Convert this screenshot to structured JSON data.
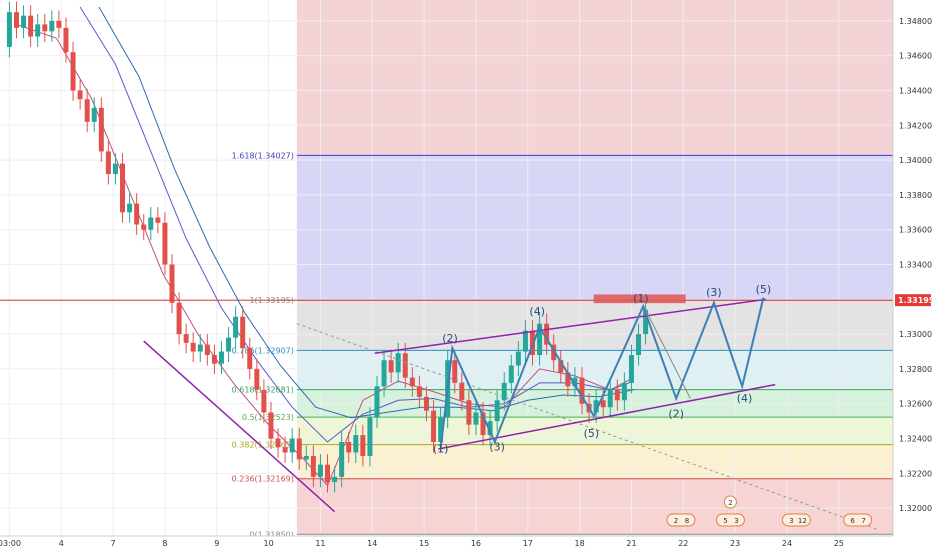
{
  "chart_data": {
    "type": "candlestick",
    "y_axis": {
      "ylim": [
        1.3184,
        1.3492
      ],
      "ticks": [
        "1.34800",
        "1.34600",
        "1.34400",
        "1.34200",
        "1.34000",
        "1.33800",
        "1.33600",
        "1.33400",
        "1.33200",
        "1.33000",
        "1.32800",
        "1.32600",
        "1.32400",
        "1.32200",
        "1.32000"
      ],
      "tick_values": [
        1.348,
        1.346,
        1.344,
        1.342,
        1.34,
        1.338,
        1.336,
        1.334,
        1.332,
        1.33,
        1.328,
        1.326,
        1.324,
        1.322,
        1.32
      ]
    },
    "x_axis": {
      "labels": [
        "03:00",
        "4",
        "7",
        "8",
        "9",
        "10",
        "11",
        "14",
        "15",
        "16",
        "17",
        "18",
        "21",
        "22",
        "23",
        "24",
        "25"
      ],
      "label_positions": [
        0.0,
        2.2,
        4.4,
        6.6,
        8.8,
        11.0,
        13.2,
        15.4,
        17.6,
        19.8,
        22.0,
        24.2,
        26.4,
        28.6,
        30.8,
        33.0,
        35.2
      ],
      "xlim": [
        -0.4,
        37.5
      ]
    },
    "current_price": {
      "label": "1.33195",
      "value": 1.33195,
      "color": "#e53935"
    },
    "fibonacci": {
      "levels": [
        {
          "label": "1.618(1.34027)",
          "value": 1.34027,
          "color": "#3f3fbf"
        },
        {
          "label": "1(1.33195)",
          "value": 1.33195,
          "color": "#8a8a8a"
        },
        {
          "label": "0.786(1.32907)",
          "value": 1.32907,
          "color": "#2a8fc9"
        },
        {
          "label": "0.618(1.32681)",
          "value": 1.32681,
          "color": "#3aa55a"
        },
        {
          "label": "0.5(1.32523)",
          "value": 1.32523,
          "color": "#4caf50"
        },
        {
          "label": "0.382(1.32365)",
          "value": 1.32365,
          "color": "#a8a820"
        },
        {
          "label": "0.236(1.32169)",
          "value": 1.32169,
          "color": "#d24b4b"
        },
        {
          "label": "0(1.31850)",
          "value": 1.3185,
          "color": "#888888"
        }
      ],
      "zones": [
        {
          "from": 1.3185,
          "to": 1.32169,
          "color": "#f6d4d4"
        },
        {
          "from": 1.32169,
          "to": 1.32365,
          "color": "#fbf1d2"
        },
        {
          "from": 1.32365,
          "to": 1.32523,
          "color": "#eef6d8"
        },
        {
          "from": 1.32523,
          "to": 1.32681,
          "color": "#d7f2dc"
        },
        {
          "from": 1.32681,
          "to": 1.32907,
          "color": "#dff0f3"
        },
        {
          "from": 1.32907,
          "to": 1.33195,
          "color": "#e3e3e3"
        },
        {
          "from": 1.33195,
          "to": 1.34027,
          "color": "#d8d6f6"
        },
        {
          "from": 1.34027,
          "to": 1.3492,
          "color": "#f3d3d5"
        }
      ],
      "x_start": 12.2
    },
    "wave_labels": [
      {
        "text": "(1)",
        "x": 18.3,
        "y": 1.3232
      },
      {
        "text": "(2)",
        "x": 18.7,
        "y": 1.32955
      },
      {
        "text": "(3)",
        "x": 20.7,
        "y": 1.3233
      },
      {
        "text": "(4)",
        "x": 22.4,
        "y": 1.3311
      },
      {
        "text": "(5)",
        "x": 24.7,
        "y": 1.3241
      },
      {
        "text": "(1)",
        "x": 26.8,
        "y": 1.33185
      },
      {
        "text": "(2)",
        "x": 28.3,
        "y": 1.3252
      },
      {
        "text": "(3)",
        "x": 29.9,
        "y": 1.3322
      },
      {
        "text": "(4)",
        "x": 31.2,
        "y": 1.3261
      },
      {
        "text": "(5)",
        "x": 32.0,
        "y": 1.33235
      }
    ],
    "wave_path": [
      [
        18.3,
        1.3234
      ],
      [
        18.8,
        1.3292
      ],
      [
        20.6,
        1.3238
      ],
      [
        22.5,
        1.3304
      ],
      [
        24.8,
        1.3253
      ],
      [
        26.9,
        1.3316
      ],
      [
        28.3,
        1.3263
      ],
      [
        29.9,
        1.3318
      ],
      [
        31.1,
        1.327
      ],
      [
        32.0,
        1.3321
      ]
    ],
    "arrow_segment": [
      [
        27.0,
        1.3314
      ],
      [
        28.9,
        1.3263
      ]
    ],
    "channel_upper": [
      [
        15.5,
        1.3289
      ],
      [
        32.1,
        1.332
      ]
    ],
    "channel_lower": [
      [
        18.2,
        1.3234
      ],
      [
        32.5,
        1.3271
      ]
    ],
    "downtrend_line": [
      [
        5.7,
        1.3296
      ],
      [
        13.8,
        1.3198
      ]
    ],
    "dotted_trend": [
      [
        12.2,
        1.3306
      ],
      [
        36.8,
        1.3188
      ]
    ],
    "target_box": {
      "x1": 24.8,
      "x2": 28.7,
      "y1": 1.33178,
      "y2": 1.33228,
      "color": "#e05555"
    },
    "ema_fast": [
      [
        0.3,
        1.3478
      ],
      [
        2.0,
        1.347
      ],
      [
        3.5,
        1.3435
      ],
      [
        5.0,
        1.3385
      ],
      [
        6.5,
        1.3335
      ],
      [
        8.0,
        1.33
      ],
      [
        9.5,
        1.3272
      ],
      [
        11.0,
        1.3248
      ],
      [
        12.5,
        1.3228
      ],
      [
        13.5,
        1.3213
      ],
      [
        15,
        1.3262
      ],
      [
        16.5,
        1.3273
      ],
      [
        18,
        1.3267
      ],
      [
        19.5,
        1.326
      ],
      [
        21,
        1.3258
      ],
      [
        22.5,
        1.328
      ],
      [
        24,
        1.3276
      ],
      [
        25.5,
        1.3268
      ],
      [
        26.5,
        1.3275
      ]
    ],
    "ema_mid": [
      [
        3.0,
        1.3488
      ],
      [
        4.5,
        1.3455
      ],
      [
        6.0,
        1.3405
      ],
      [
        7.5,
        1.3355
      ],
      [
        9.0,
        1.3315
      ],
      [
        10.5,
        1.3285
      ],
      [
        12.0,
        1.3258
      ],
      [
        13.5,
        1.3238
      ],
      [
        15,
        1.3254
      ],
      [
        16.5,
        1.3262
      ],
      [
        18,
        1.3263
      ],
      [
        19.5,
        1.3258
      ],
      [
        21,
        1.326
      ],
      [
        22.5,
        1.3272
      ],
      [
        24,
        1.3272
      ],
      [
        25.5,
        1.3268
      ],
      [
        26.5,
        1.3273
      ]
    ],
    "ema_slow": [
      [
        3.8,
        1.3488
      ],
      [
        5.5,
        1.3448
      ],
      [
        7.0,
        1.3395
      ],
      [
        8.5,
        1.335
      ],
      [
        10.0,
        1.3312
      ],
      [
        11.5,
        1.3282
      ],
      [
        13.0,
        1.3258
      ],
      [
        14.5,
        1.3252
      ],
      [
        16,
        1.3255
      ],
      [
        17.5,
        1.3258
      ],
      [
        19,
        1.3258
      ],
      [
        20.5,
        1.3256
      ],
      [
        22,
        1.3262
      ],
      [
        23.5,
        1.3265
      ],
      [
        25,
        1.3264
      ],
      [
        26.5,
        1.3268
      ]
    ],
    "candles": [
      [
        0.0,
        1.3465,
        1.3485
      ],
      [
        0.3,
        1.3485,
        1.3476
      ],
      [
        0.6,
        1.3476,
        1.3483
      ],
      [
        0.9,
        1.3483,
        1.3471
      ],
      [
        1.2,
        1.3471,
        1.3478
      ],
      [
        1.5,
        1.3478,
        1.3474
      ],
      [
        1.8,
        1.3474,
        1.348
      ],
      [
        2.1,
        1.348,
        1.3476
      ],
      [
        2.4,
        1.3476,
        1.3462
      ],
      [
        2.7,
        1.3462,
        1.344
      ],
      [
        3.0,
        1.344,
        1.3435
      ],
      [
        3.3,
        1.3435,
        1.3422
      ],
      [
        3.6,
        1.3422,
        1.343
      ],
      [
        3.9,
        1.343,
        1.3405
      ],
      [
        4.2,
        1.3405,
        1.3392
      ],
      [
        4.5,
        1.3392,
        1.3398
      ],
      [
        4.8,
        1.3398,
        1.337
      ],
      [
        5.1,
        1.337,
        1.3375
      ],
      [
        5.4,
        1.3375,
        1.3363
      ],
      [
        5.7,
        1.3363,
        1.336
      ],
      [
        6.0,
        1.336,
        1.3367
      ],
      [
        6.3,
        1.3367,
        1.3364
      ],
      [
        6.6,
        1.3364,
        1.334
      ],
      [
        6.9,
        1.334,
        1.3318
      ],
      [
        7.2,
        1.3318,
        1.33
      ],
      [
        7.5,
        1.33,
        1.3295
      ],
      [
        7.8,
        1.3295,
        1.329
      ],
      [
        8.1,
        1.329,
        1.3294
      ],
      [
        8.4,
        1.3294,
        1.3288
      ],
      [
        8.7,
        1.3288,
        1.3283
      ],
      [
        9.0,
        1.3283,
        1.329
      ],
      [
        9.3,
        1.329,
        1.3298
      ],
      [
        9.6,
        1.3298,
        1.331
      ],
      [
        9.9,
        1.331,
        1.3292
      ],
      [
        10.2,
        1.3292,
        1.328
      ],
      [
        10.5,
        1.328,
        1.3268
      ],
      [
        10.8,
        1.3268,
        1.3255
      ],
      [
        11.1,
        1.3255,
        1.324
      ],
      [
        11.4,
        1.324,
        1.3235
      ],
      [
        11.7,
        1.3235,
        1.3232
      ],
      [
        12.0,
        1.3232,
        1.324
      ],
      [
        12.3,
        1.324,
        1.3228
      ],
      [
        12.6,
        1.3228,
        1.323
      ],
      [
        12.9,
        1.323,
        1.3218
      ],
      [
        13.2,
        1.3218,
        1.3225
      ],
      [
        13.5,
        1.3225,
        1.3215
      ],
      [
        13.8,
        1.3215,
        1.3218
      ],
      [
        14.1,
        1.3218,
        1.3238
      ],
      [
        14.4,
        1.3238,
        1.3232
      ],
      [
        14.7,
        1.3232,
        1.3242
      ],
      [
        15.0,
        1.3242,
        1.323
      ],
      [
        15.3,
        1.323,
        1.3252
      ],
      [
        15.6,
        1.3252,
        1.327
      ],
      [
        15.9,
        1.327,
        1.3285
      ],
      [
        16.2,
        1.3285,
        1.3278
      ],
      [
        16.5,
        1.3278,
        1.3289
      ],
      [
        16.8,
        1.3289,
        1.3275
      ],
      [
        17.1,
        1.3275,
        1.327
      ],
      [
        17.4,
        1.327,
        1.3264
      ],
      [
        17.7,
        1.3264,
        1.3256
      ],
      [
        18.0,
        1.3256,
        1.3238
      ],
      [
        18.3,
        1.3238,
        1.3252
      ],
      [
        18.6,
        1.3252,
        1.3285
      ],
      [
        18.9,
        1.3285,
        1.3272
      ],
      [
        19.2,
        1.3272,
        1.3262
      ],
      [
        19.5,
        1.3262,
        1.3248
      ],
      [
        19.8,
        1.3248,
        1.3255
      ],
      [
        20.1,
        1.3255,
        1.3242
      ],
      [
        20.4,
        1.3242,
        1.325
      ],
      [
        20.7,
        1.325,
        1.3262
      ],
      [
        21.0,
        1.3262,
        1.3272
      ],
      [
        21.3,
        1.3272,
        1.3282
      ],
      [
        21.6,
        1.3282,
        1.329
      ],
      [
        21.9,
        1.329,
        1.3302
      ],
      [
        22.2,
        1.3302,
        1.3288
      ],
      [
        22.5,
        1.3288,
        1.3306
      ],
      [
        22.8,
        1.3306,
        1.3294
      ],
      [
        23.1,
        1.3294,
        1.3285
      ],
      [
        23.4,
        1.3285,
        1.3278
      ],
      [
        23.7,
        1.3278,
        1.327
      ],
      [
        24.0,
        1.327,
        1.3275
      ],
      [
        24.3,
        1.3275,
        1.326
      ],
      [
        24.6,
        1.326,
        1.3255
      ],
      [
        24.9,
        1.3255,
        1.3262
      ],
      [
        25.2,
        1.3262,
        1.3258
      ],
      [
        25.5,
        1.3258,
        1.3268
      ],
      [
        25.8,
        1.3268,
        1.3262
      ],
      [
        26.1,
        1.3262,
        1.3272
      ],
      [
        26.4,
        1.3272,
        1.3288
      ],
      [
        26.7,
        1.3288,
        1.33
      ],
      [
        27.0,
        1.33,
        1.3314
      ]
    ],
    "axis_badges": [
      {
        "x": 28.5,
        "labels": [
          "2",
          "8"
        ]
      },
      {
        "x": 30.6,
        "labels": [
          "5",
          "3"
        ]
      },
      {
        "x": 33.4,
        "labels": [
          "3",
          "12"
        ]
      },
      {
        "x": 36.0,
        "labels": [
          "6",
          "7"
        ]
      }
    ],
    "badge_above": {
      "x": 30.6,
      "label": "2"
    }
  }
}
